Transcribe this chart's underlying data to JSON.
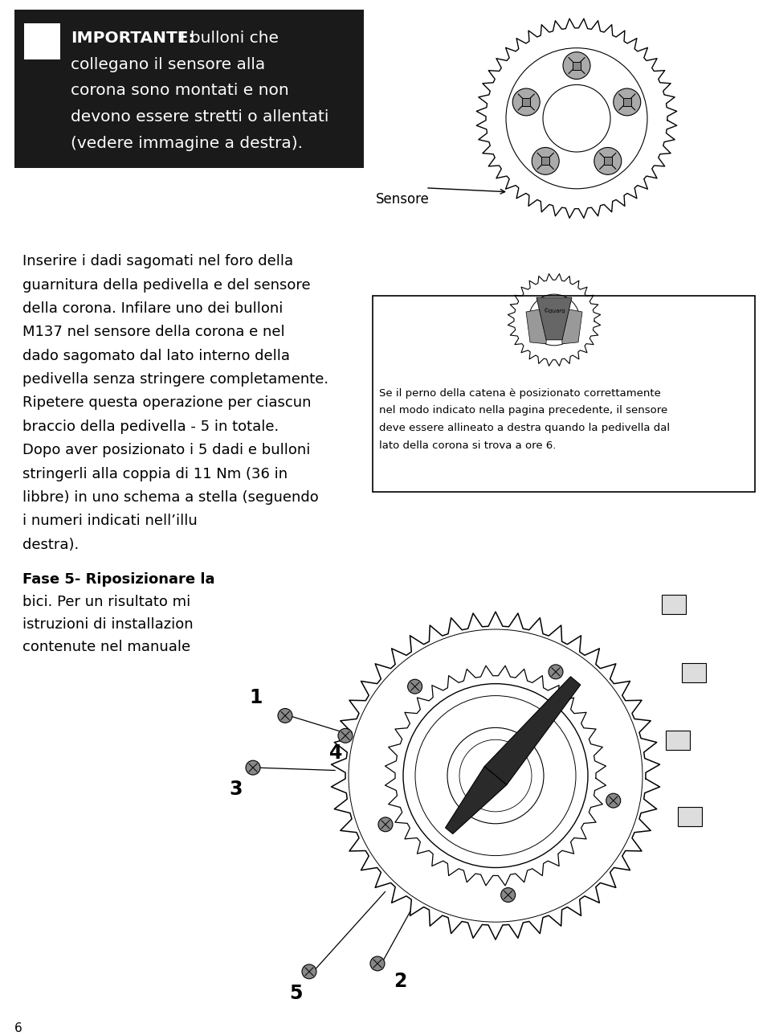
{
  "bg_color": "#ffffff",
  "page_number": "6",
  "important_box_color": "#1a1a1a",
  "important_bold": "IMPORTANTE:",
  "important_line1": " I bulloni che",
  "important_lines": [
    "collegano il sensore alla",
    "corona sono montati e non",
    "devono essere stretti o allentati",
    "(vedere immagine a destra)."
  ],
  "text_color_white": "#ffffff",
  "sensore_label": "Sensore",
  "main_lines": [
    "Inserire i dadi sagomati nel foro della",
    "guarnitura della pedivella e del sensore",
    "della corona. Infilare uno dei bulloni",
    "M137 nel sensore della corona e nel",
    "dado sagomato dal lato interno della",
    "pedivella senza stringere completamente.",
    "Ripetere questa operazione per ciascun",
    "braccio della pedivella - 5 in totale.",
    "Dopo aver posizionato i 5 dadi e bulloni",
    "stringerli alla coppia di 11 Nm (36 in",
    "libbre) in uno schema a stella (seguendo",
    "i numeri indicati nell’illu",
    "destra)."
  ],
  "fase5_lines": [
    "Fase 5- Riposizionare la",
    "bici. Per un risultato mi",
    "istruzioni di installazion",
    "contenute nel manuale"
  ],
  "caption_lines": [
    "Se il perno della catena è posizionato correttamente",
    "nel modo indicato nella pagina precedente, il sensore",
    "deve essere allineato a destra quando la pedivella dal",
    "lato della corona si trova a ore 6."
  ],
  "font_size_main": 13,
  "font_size_caption": 9.5,
  "font_size_important": 14.5,
  "font_size_label": 12
}
